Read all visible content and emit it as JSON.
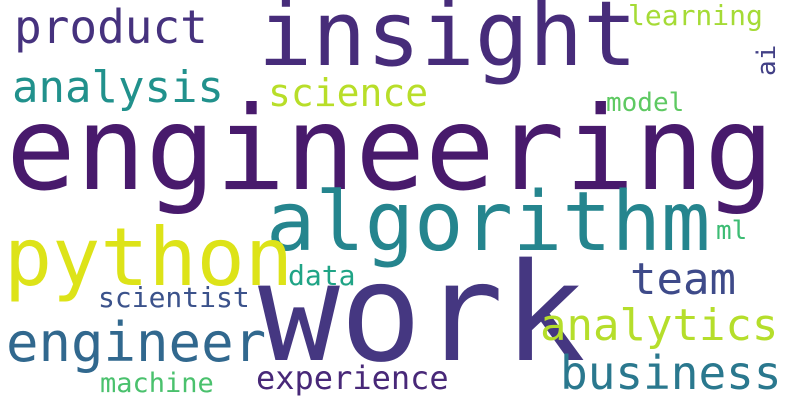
{
  "words": {
    "engineering": {
      "text": "engineering",
      "color": "#481a6c"
    },
    "work": {
      "text": "work",
      "color": "#453781"
    },
    "insight": {
      "text": "insight",
      "color": "#472c7a"
    },
    "algorithm": {
      "text": "algorithm",
      "color": "#25858e"
    },
    "python": {
      "text": "python",
      "color": "#dde318"
    },
    "engineer": {
      "text": "engineer",
      "color": "#31688e"
    },
    "analytics": {
      "text": "analytics",
      "color": "#b5de2b"
    },
    "business": {
      "text": "business",
      "color": "#2a788e"
    },
    "product": {
      "text": "product",
      "color": "#46327e"
    },
    "analysis": {
      "text": "analysis",
      "color": "#21918c"
    },
    "science": {
      "text": "science",
      "color": "#b8de29"
    },
    "team": {
      "text": "team",
      "color": "#3e4a89"
    },
    "experience": {
      "text": "experience",
      "color": "#482878"
    },
    "learning": {
      "text": "learning",
      "color": "#a5db36"
    },
    "scientist": {
      "text": "scientist",
      "color": "#3b528b"
    },
    "machine": {
      "text": "machine",
      "color": "#4ac16d"
    },
    "data": {
      "text": "data",
      "color": "#20a486"
    },
    "model": {
      "text": "model",
      "color": "#5ec962"
    },
    "ml": {
      "text": "ml",
      "color": "#3dbc74"
    },
    "ai": {
      "text": "ai",
      "color": "#424086"
    }
  }
}
